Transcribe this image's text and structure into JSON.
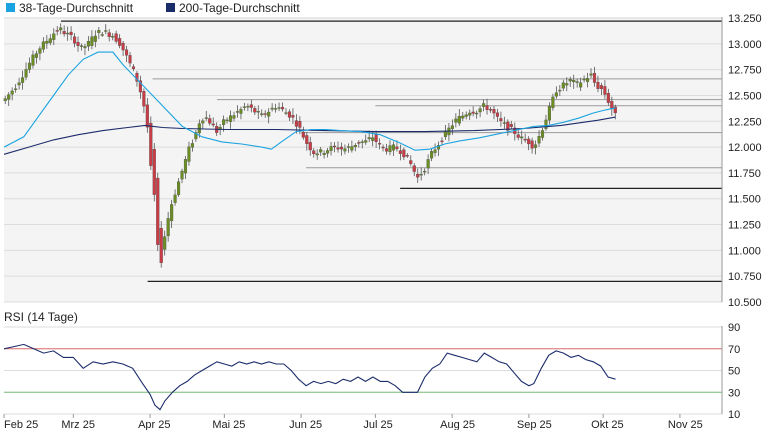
{
  "legend": [
    {
      "label": "38-Tage-Durchschnitt",
      "color": "#1aa3e0"
    },
    {
      "label": "200-Tage-Durchschnitt",
      "color": "#1b2c6b"
    }
  ],
  "rsi_label": "RSI (14 Tage)",
  "colors": {
    "up": "#6b8e23",
    "down": "#c83c46",
    "ma38": "#1aa3e0",
    "ma200": "#1b2c6b",
    "rsi": "#1b2c6b",
    "rsi_upper": "#e07070",
    "rsi_lower": "#7ec07e",
    "level": "#222222",
    "grid": "#dddddd",
    "plot_bg": "#f4f4f4"
  },
  "chart_data": [
    {
      "type": "candlestick",
      "y_ticks": [
        "13.250",
        "13.000",
        "12.750",
        "12.500",
        "12.250",
        "12.000",
        "11.750",
        "11.500",
        "11.250",
        "11.000",
        "10.750",
        "10.500"
      ],
      "y_tick_values": [
        13250,
        13000,
        12750,
        12500,
        12250,
        12000,
        11750,
        11500,
        11250,
        11000,
        10750,
        10500
      ],
      "ylim": [
        10500,
        13250
      ],
      "x_ticks": [
        "Feb 25",
        "Mrz 25",
        "Apr 25",
        "Mai 25",
        "Jun 25",
        "Jul 25",
        "Aug 25",
        "Sep 25",
        "Okt 25",
        "Nov 25"
      ],
      "x_tick_days": [
        0,
        28,
        59,
        89,
        120,
        150,
        181,
        212,
        242,
        273
      ],
      "x_range_days": [
        0,
        290
      ],
      "levels": [
        {
          "value": 13220,
          "from_day": 23
        },
        {
          "value": 12660,
          "from_day": 60
        },
        {
          "value": 12460,
          "from_day": 86
        },
        {
          "value": 12400,
          "from_day": 150
        },
        {
          "value": 12140,
          "from_day": 120
        },
        {
          "value": 11800,
          "from_day": 122
        },
        {
          "value": 11600,
          "from_day": 160
        },
        {
          "value": 10700,
          "from_day": 58
        }
      ],
      "price_path": [
        [
          0,
          12450
        ],
        [
          5,
          12600
        ],
        [
          10,
          12800
        ],
        [
          14,
          12950
        ],
        [
          18,
          13050
        ],
        [
          22,
          13150
        ],
        [
          25,
          13100
        ],
        [
          28,
          13050
        ],
        [
          31,
          12950
        ],
        [
          34,
          13000
        ],
        [
          37,
          13100
        ],
        [
          40,
          13120
        ],
        [
          44,
          13080
        ],
        [
          47,
          13000
        ],
        [
          50,
          12850
        ],
        [
          53,
          12700
        ],
        [
          55,
          12550
        ],
        [
          57,
          12350
        ],
        [
          59,
          12000
        ],
        [
          61,
          11600
        ],
        [
          62,
          11200
        ],
        [
          63,
          10950
        ],
        [
          65,
          11150
        ],
        [
          67,
          11400
        ],
        [
          69,
          11550
        ],
        [
          71,
          11700
        ],
        [
          73,
          11850
        ],
        [
          75,
          12000
        ],
        [
          77,
          12100
        ],
        [
          79,
          12250
        ],
        [
          81,
          12300
        ],
        [
          83,
          12250
        ],
        [
          86,
          12150
        ],
        [
          89,
          12250
        ],
        [
          92,
          12300
        ],
        [
          95,
          12350
        ],
        [
          98,
          12400
        ],
        [
          101,
          12350
        ],
        [
          104,
          12300
        ],
        [
          107,
          12350
        ],
        [
          110,
          12400
        ],
        [
          113,
          12350
        ],
        [
          116,
          12300
        ],
        [
          119,
          12200
        ],
        [
          122,
          12050
        ],
        [
          125,
          11950
        ],
        [
          128,
          11950
        ],
        [
          131,
          11980
        ],
        [
          134,
          12000
        ],
        [
          137,
          11980
        ],
        [
          140,
          12000
        ],
        [
          143,
          12050
        ],
        [
          146,
          12050
        ],
        [
          149,
          12100
        ],
        [
          152,
          12000
        ],
        [
          155,
          11980
        ],
        [
          158,
          12000
        ],
        [
          161,
          11950
        ],
        [
          164,
          11850
        ],
        [
          167,
          11700
        ],
        [
          170,
          11800
        ],
        [
          173,
          11950
        ],
        [
          176,
          12050
        ],
        [
          179,
          12150
        ],
        [
          182,
          12250
        ],
        [
          185,
          12300
        ],
        [
          188,
          12350
        ],
        [
          191,
          12350
        ],
        [
          194,
          12400
        ],
        [
          197,
          12350
        ],
        [
          200,
          12250
        ],
        [
          203,
          12200
        ],
        [
          206,
          12150
        ],
        [
          209,
          12080
        ],
        [
          212,
          12050
        ],
        [
          214,
          12000
        ],
        [
          217,
          12150
        ],
        [
          220,
          12350
        ],
        [
          223,
          12550
        ],
        [
          226,
          12600
        ],
        [
          229,
          12650
        ],
        [
          231,
          12600
        ],
        [
          234,
          12650
        ],
        [
          237,
          12700
        ],
        [
          239,
          12600
        ],
        [
          242,
          12550
        ],
        [
          245,
          12400
        ],
        [
          247,
          12300
        ]
      ],
      "ma38_path": [
        [
          0,
          12000
        ],
        [
          8,
          12100
        ],
        [
          14,
          12300
        ],
        [
          20,
          12500
        ],
        [
          26,
          12700
        ],
        [
          32,
          12850
        ],
        [
          38,
          12920
        ],
        [
          44,
          12920
        ],
        [
          48,
          12800
        ],
        [
          54,
          12650
        ],
        [
          60,
          12500
        ],
        [
          66,
          12350
        ],
        [
          72,
          12200
        ],
        [
          80,
          12100
        ],
        [
          88,
          12050
        ],
        [
          96,
          12030
        ],
        [
          104,
          12000
        ],
        [
          108,
          11980
        ],
        [
          112,
          12050
        ],
        [
          118,
          12150
        ],
        [
          124,
          12170
        ],
        [
          130,
          12170
        ],
        [
          136,
          12160
        ],
        [
          144,
          12150
        ],
        [
          152,
          12120
        ],
        [
          160,
          12040
        ],
        [
          166,
          11970
        ],
        [
          172,
          11980
        ],
        [
          178,
          12030
        ],
        [
          184,
          12060
        ],
        [
          192,
          12090
        ],
        [
          200,
          12130
        ],
        [
          208,
          12170
        ],
        [
          214,
          12200
        ],
        [
          220,
          12210
        ],
        [
          226,
          12240
        ],
        [
          232,
          12280
        ],
        [
          238,
          12330
        ],
        [
          243,
          12360
        ],
        [
          247,
          12380
        ]
      ],
      "ma200_path": [
        [
          0,
          11930
        ],
        [
          10,
          12000
        ],
        [
          20,
          12070
        ],
        [
          30,
          12120
        ],
        [
          40,
          12160
        ],
        [
          50,
          12190
        ],
        [
          57,
          12210
        ],
        [
          64,
          12190
        ],
        [
          72,
          12180
        ],
        [
          90,
          12170
        ],
        [
          110,
          12170
        ],
        [
          130,
          12160
        ],
        [
          150,
          12150
        ],
        [
          170,
          12150
        ],
        [
          190,
          12160
        ],
        [
          210,
          12180
        ],
        [
          225,
          12210
        ],
        [
          240,
          12260
        ],
        [
          247,
          12290
        ]
      ]
    },
    {
      "type": "line",
      "y_ticks": [
        "90",
        "70",
        "50",
        "30",
        "10"
      ],
      "y_tick_values": [
        90,
        70,
        50,
        30,
        10
      ],
      "ylim": [
        10,
        90
      ],
      "thresholds": [
        70,
        30
      ],
      "rsi_path": [
        [
          0,
          70
        ],
        [
          4,
          72
        ],
        [
          8,
          74
        ],
        [
          12,
          70
        ],
        [
          16,
          66
        ],
        [
          20,
          68
        ],
        [
          24,
          62
        ],
        [
          28,
          62
        ],
        [
          32,
          52
        ],
        [
          36,
          58
        ],
        [
          40,
          56
        ],
        [
          44,
          58
        ],
        [
          48,
          56
        ],
        [
          52,
          52
        ],
        [
          56,
          38
        ],
        [
          59,
          28
        ],
        [
          61,
          18
        ],
        [
          63,
          14
        ],
        [
          65,
          22
        ],
        [
          68,
          30
        ],
        [
          71,
          36
        ],
        [
          74,
          40
        ],
        [
          77,
          46
        ],
        [
          80,
          50
        ],
        [
          83,
          54
        ],
        [
          86,
          58
        ],
        [
          89,
          56
        ],
        [
          92,
          54
        ],
        [
          95,
          58
        ],
        [
          98,
          56
        ],
        [
          101,
          58
        ],
        [
          104,
          56
        ],
        [
          107,
          58
        ],
        [
          110,
          56
        ],
        [
          113,
          56
        ],
        [
          116,
          50
        ],
        [
          119,
          42
        ],
        [
          122,
          36
        ],
        [
          125,
          40
        ],
        [
          128,
          38
        ],
        [
          131,
          40
        ],
        [
          134,
          38
        ],
        [
          137,
          42
        ],
        [
          140,
          40
        ],
        [
          143,
          44
        ],
        [
          146,
          40
        ],
        [
          149,
          44
        ],
        [
          152,
          40
        ],
        [
          155,
          40
        ],
        [
          158,
          36
        ],
        [
          161,
          30
        ],
        [
          164,
          30
        ],
        [
          167,
          30
        ],
        [
          170,
          44
        ],
        [
          173,
          52
        ],
        [
          176,
          56
        ],
        [
          179,
          66
        ],
        [
          182,
          64
        ],
        [
          185,
          62
        ],
        [
          188,
          60
        ],
        [
          191,
          58
        ],
        [
          194,
          66
        ],
        [
          197,
          62
        ],
        [
          200,
          58
        ],
        [
          203,
          56
        ],
        [
          206,
          48
        ],
        [
          209,
          40
        ],
        [
          212,
          36
        ],
        [
          214,
          38
        ],
        [
          217,
          52
        ],
        [
          220,
          64
        ],
        [
          223,
          68
        ],
        [
          226,
          66
        ],
        [
          229,
          62
        ],
        [
          232,
          64
        ],
        [
          235,
          60
        ],
        [
          238,
          58
        ],
        [
          241,
          54
        ],
        [
          244,
          44
        ],
        [
          247,
          42
        ]
      ]
    }
  ]
}
